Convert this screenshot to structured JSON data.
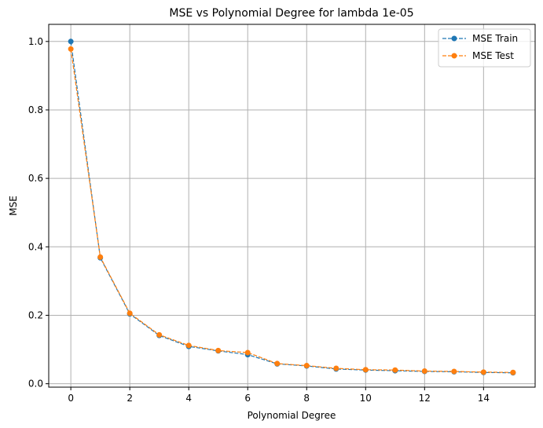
{
  "chart_data": {
    "type": "line",
    "title": "MSE vs Polynomial Degree for lambda 1e-05",
    "xlabel": "Polynomial Degree",
    "ylabel": "MSE",
    "x": [
      0,
      1,
      2,
      3,
      4,
      5,
      6,
      7,
      8,
      9,
      10,
      11,
      12,
      13,
      14,
      15
    ],
    "xlim": [
      -0.75,
      15.75
    ],
    "ylim": [
      -0.01,
      1.05
    ],
    "xticks": [
      0,
      2,
      4,
      6,
      8,
      10,
      12,
      14
    ],
    "yticks": [
      0.0,
      0.2,
      0.4,
      0.6,
      0.8,
      1.0
    ],
    "xtick_labels": [
      "0",
      "2",
      "4",
      "6",
      "8",
      "10",
      "12",
      "14"
    ],
    "ytick_labels": [
      "0.0",
      "0.2",
      "0.4",
      "0.6",
      "0.8",
      "1.0"
    ],
    "grid": true,
    "legend_position": "top-right",
    "series": [
      {
        "name": "MSE Train",
        "color": "#1f77b4",
        "line_style": "dashed",
        "marker": "circle",
        "values": [
          1.0,
          0.368,
          0.204,
          0.141,
          0.109,
          0.096,
          0.085,
          0.058,
          0.052,
          0.043,
          0.04,
          0.038,
          0.036,
          0.035,
          0.033,
          0.032
        ]
      },
      {
        "name": "MSE Test",
        "color": "#ff7f0e",
        "line_style": "dashed",
        "marker": "circle",
        "values": [
          0.978,
          0.37,
          0.206,
          0.143,
          0.112,
          0.097,
          0.091,
          0.059,
          0.053,
          0.045,
          0.041,
          0.04,
          0.037,
          0.036,
          0.034,
          0.033
        ]
      }
    ]
  }
}
